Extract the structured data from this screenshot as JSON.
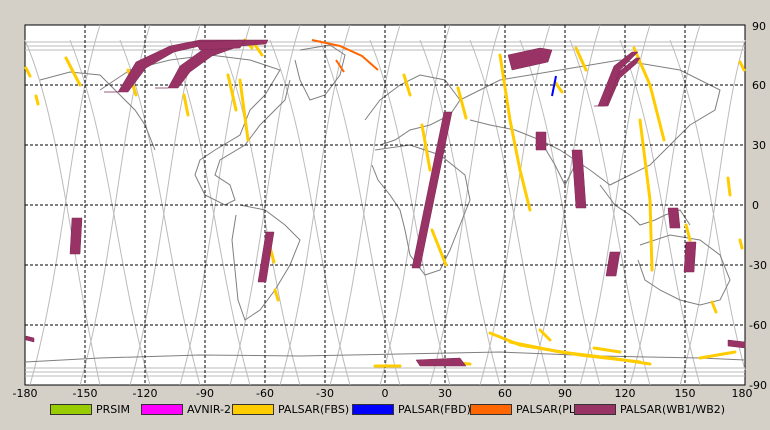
{
  "map": {
    "x_ticks": [
      "-180",
      "-150",
      "-120",
      "-90",
      "-60",
      "-30",
      "0",
      "30",
      "60",
      "90",
      "120",
      "150",
      "180"
    ],
    "y_ticks": [
      "90",
      "60",
      "30",
      "0",
      "-30",
      "-60",
      "-90"
    ],
    "colors": {
      "background": "#ffffff",
      "grid": "#000000",
      "coast": "#808080",
      "orbit": "#b8b8b8"
    }
  },
  "legend": [
    {
      "label": "PRSIM",
      "color": "#99cc00"
    },
    {
      "label": "AVNIR-2",
      "color": "#ff00ff"
    },
    {
      "label": "PALSAR(FBS)",
      "color": "#ffcc00"
    },
    {
      "label": "PALSAR(FBD)",
      "color": "#0000ff"
    },
    {
      "label": "PALSAR(PLR)",
      "color": "#ff6600"
    },
    {
      "label": "PALSAR(WB1/WB2)",
      "color": "#993366"
    }
  ]
}
